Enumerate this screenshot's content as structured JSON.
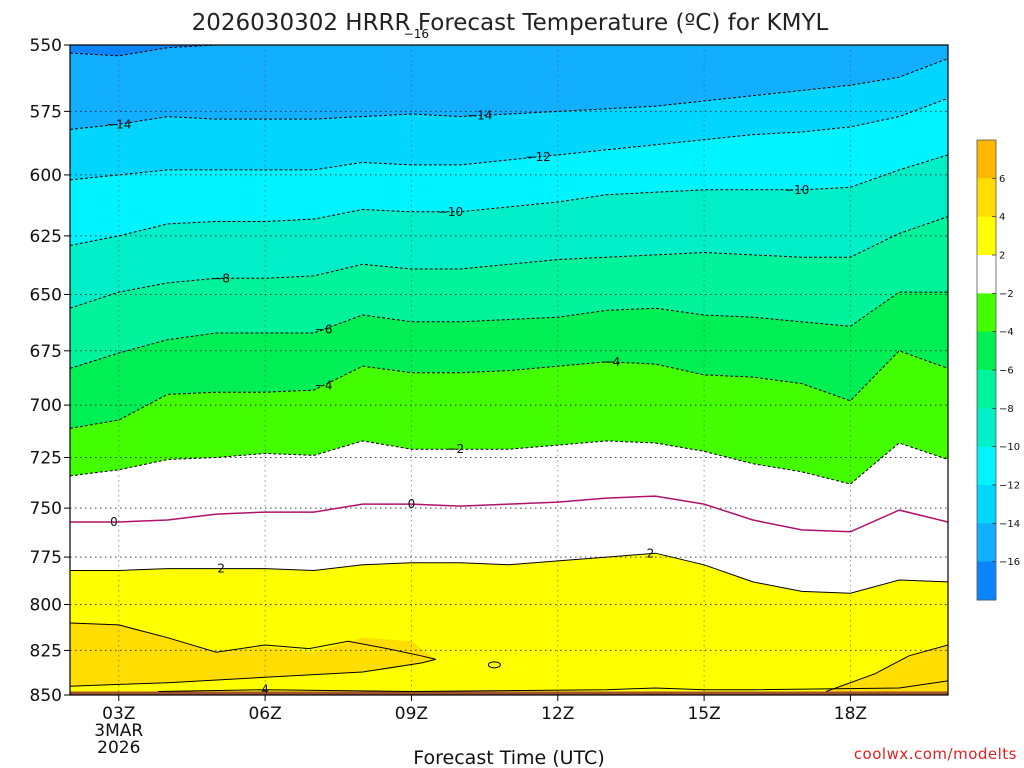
{
  "title": "2026030302 HRRR Forecast Temperature (ºC) for KMYL",
  "credit": "coolwx.com/modelts",
  "chart_data": {
    "type": "heatmap",
    "title": "2026030302 HRRR Forecast Temperature (ºC) for KMYL",
    "xlabel": "Forecast Time (UTC)",
    "ylabel": "",
    "y_scale": "log-pressure",
    "y_inverted": true,
    "grid": true,
    "ylim": [
      850,
      550
    ],
    "xlim": [
      "02Z",
      "20Z"
    ],
    "x_ticks": [
      {
        "label": "03Z",
        "hour": 3,
        "sub": [
          "3MAR",
          "2026"
        ]
      },
      {
        "label": "06Z",
        "hour": 6,
        "sub": []
      },
      {
        "label": "09Z",
        "hour": 9,
        "sub": []
      },
      {
        "label": "12Z",
        "hour": 12,
        "sub": []
      },
      {
        "label": "15Z",
        "hour": 15,
        "sub": []
      },
      {
        "label": "18Z",
        "hour": 18,
        "sub": []
      }
    ],
    "y_ticks": [
      550,
      575,
      600,
      625,
      650,
      675,
      700,
      725,
      750,
      775,
      800,
      825,
      850
    ],
    "hours": [
      2,
      3,
      4,
      5,
      6,
      7,
      8,
      9,
      10,
      11,
      12,
      13,
      14,
      15,
      16,
      17,
      18,
      19,
      20
    ],
    "isotherms": [
      {
        "value": -16,
        "pressure": [
          553,
          554,
          551,
          550,
          549,
          548,
          548,
          546,
          545,
          544,
          543,
          541,
          539,
          536,
          534,
          533,
          533,
          532,
          530
        ],
        "label": "−16",
        "label_hour": 9.1
      },
      {
        "value": -14,
        "pressure": [
          582,
          580,
          577,
          578,
          578,
          578,
          577,
          576,
          577,
          576,
          575,
          574,
          573,
          571,
          569,
          567,
          565,
          562,
          555
        ],
        "label": "−14",
        "label_hour": 3.0
      },
      {
        "value": -14,
        "label": "−14",
        "label_hour": 10.4
      },
      {
        "value": -12,
        "pressure": [
          602,
          600,
          598,
          598,
          598,
          598,
          595,
          596,
          596,
          594,
          592,
          590,
          588,
          586,
          584,
          583,
          581,
          577,
          570
        ],
        "label": "−12",
        "label_hour": 11.6
      },
      {
        "value": -10,
        "pressure": [
          629,
          625,
          620,
          619,
          619,
          618,
          614,
          615,
          615,
          613,
          611,
          608,
          607,
          606,
          606,
          606,
          605,
          598,
          592
        ],
        "label": "−10",
        "label_hour": 9.8
      },
      {
        "value": -10,
        "label": "−10",
        "label_hour": 16.9
      },
      {
        "value": -8,
        "pressure": [
          656,
          649,
          645,
          643,
          643,
          642,
          637,
          639,
          639,
          637,
          635,
          634,
          633,
          632,
          633,
          634,
          634,
          624,
          617
        ],
        "label": "−8",
        "label_hour": 5.1
      },
      {
        "value": -6,
        "pressure": [
          683,
          676,
          670,
          667,
          667,
          667,
          659,
          662,
          662,
          661,
          660,
          657,
          656,
          659,
          660,
          662,
          664,
          649,
          649
        ],
        "label": "−6",
        "label_hour": 7.2
      },
      {
        "value": -4,
        "pressure": [
          711,
          707,
          695,
          694,
          694,
          693,
          682,
          685,
          685,
          684,
          682,
          680,
          681,
          686,
          687,
          690,
          698,
          675,
          683
        ],
        "label": "−4",
        "label_hour": 7.2
      },
      {
        "value": -4,
        "label": "−4",
        "label_hour": 13.1
      },
      {
        "value": -2,
        "pressure": [
          734,
          731,
          726,
          725,
          723,
          724,
          717,
          721,
          721,
          721,
          719,
          717,
          718,
          722,
          728,
          732,
          738,
          718,
          726
        ],
        "label": "−2",
        "label_hour": 9.9
      },
      {
        "value": 0,
        "pressure": [
          757,
          757,
          756,
          753,
          752,
          752,
          748,
          748,
          749,
          748,
          747,
          745,
          744,
          748,
          756,
          761,
          762,
          751,
          757
        ],
        "label": "0",
        "label_hour": 2.9
      },
      {
        "value": 0,
        "label": "0",
        "label_hour": 9.0
      },
      {
        "value": 2,
        "pressure": [
          782,
          782,
          781,
          781,
          781,
          782,
          779,
          778,
          778,
          779,
          777,
          775,
          773,
          779,
          788,
          793,
          794,
          787,
          788
        ],
        "label": "2",
        "label_hour": 5.1
      },
      {
        "value": 2,
        "label": "2",
        "label_hour": 13.9
      },
      {
        "value": 4,
        "label": "4",
        "label_hour": 6.0
      }
    ],
    "surface_pressure": 848,
    "colorbar": {
      "bands": [
        {
          "min": null,
          "max": -16,
          "color": "#0a84ff"
        },
        {
          "min": -16,
          "max": -14,
          "color": "#12aeff"
        },
        {
          "min": -14,
          "max": -12,
          "color": "#00d6ff"
        },
        {
          "min": -12,
          "max": -10,
          "color": "#00f4ff"
        },
        {
          "min": -10,
          "max": -8,
          "color": "#00efc8"
        },
        {
          "min": -8,
          "max": -6,
          "color": "#00f29a"
        },
        {
          "min": -6,
          "max": -4,
          "color": "#00ef55"
        },
        {
          "min": -4,
          "max": -2,
          "color": "#44ff00"
        },
        {
          "min": -2,
          "max": 2,
          "color": "#ffffff"
        },
        {
          "min": 2,
          "max": 4,
          "color": "#ffff00"
        },
        {
          "min": 4,
          "max": 6,
          "color": "#ffdd00"
        },
        {
          "min": 6,
          "max": null,
          "color": "#ffb800"
        }
      ],
      "labels": [
        "6",
        "4",
        "2",
        "−2",
        "−4",
        "−6",
        "−8",
        "−10",
        "−12",
        "−14",
        "−16"
      ]
    }
  }
}
